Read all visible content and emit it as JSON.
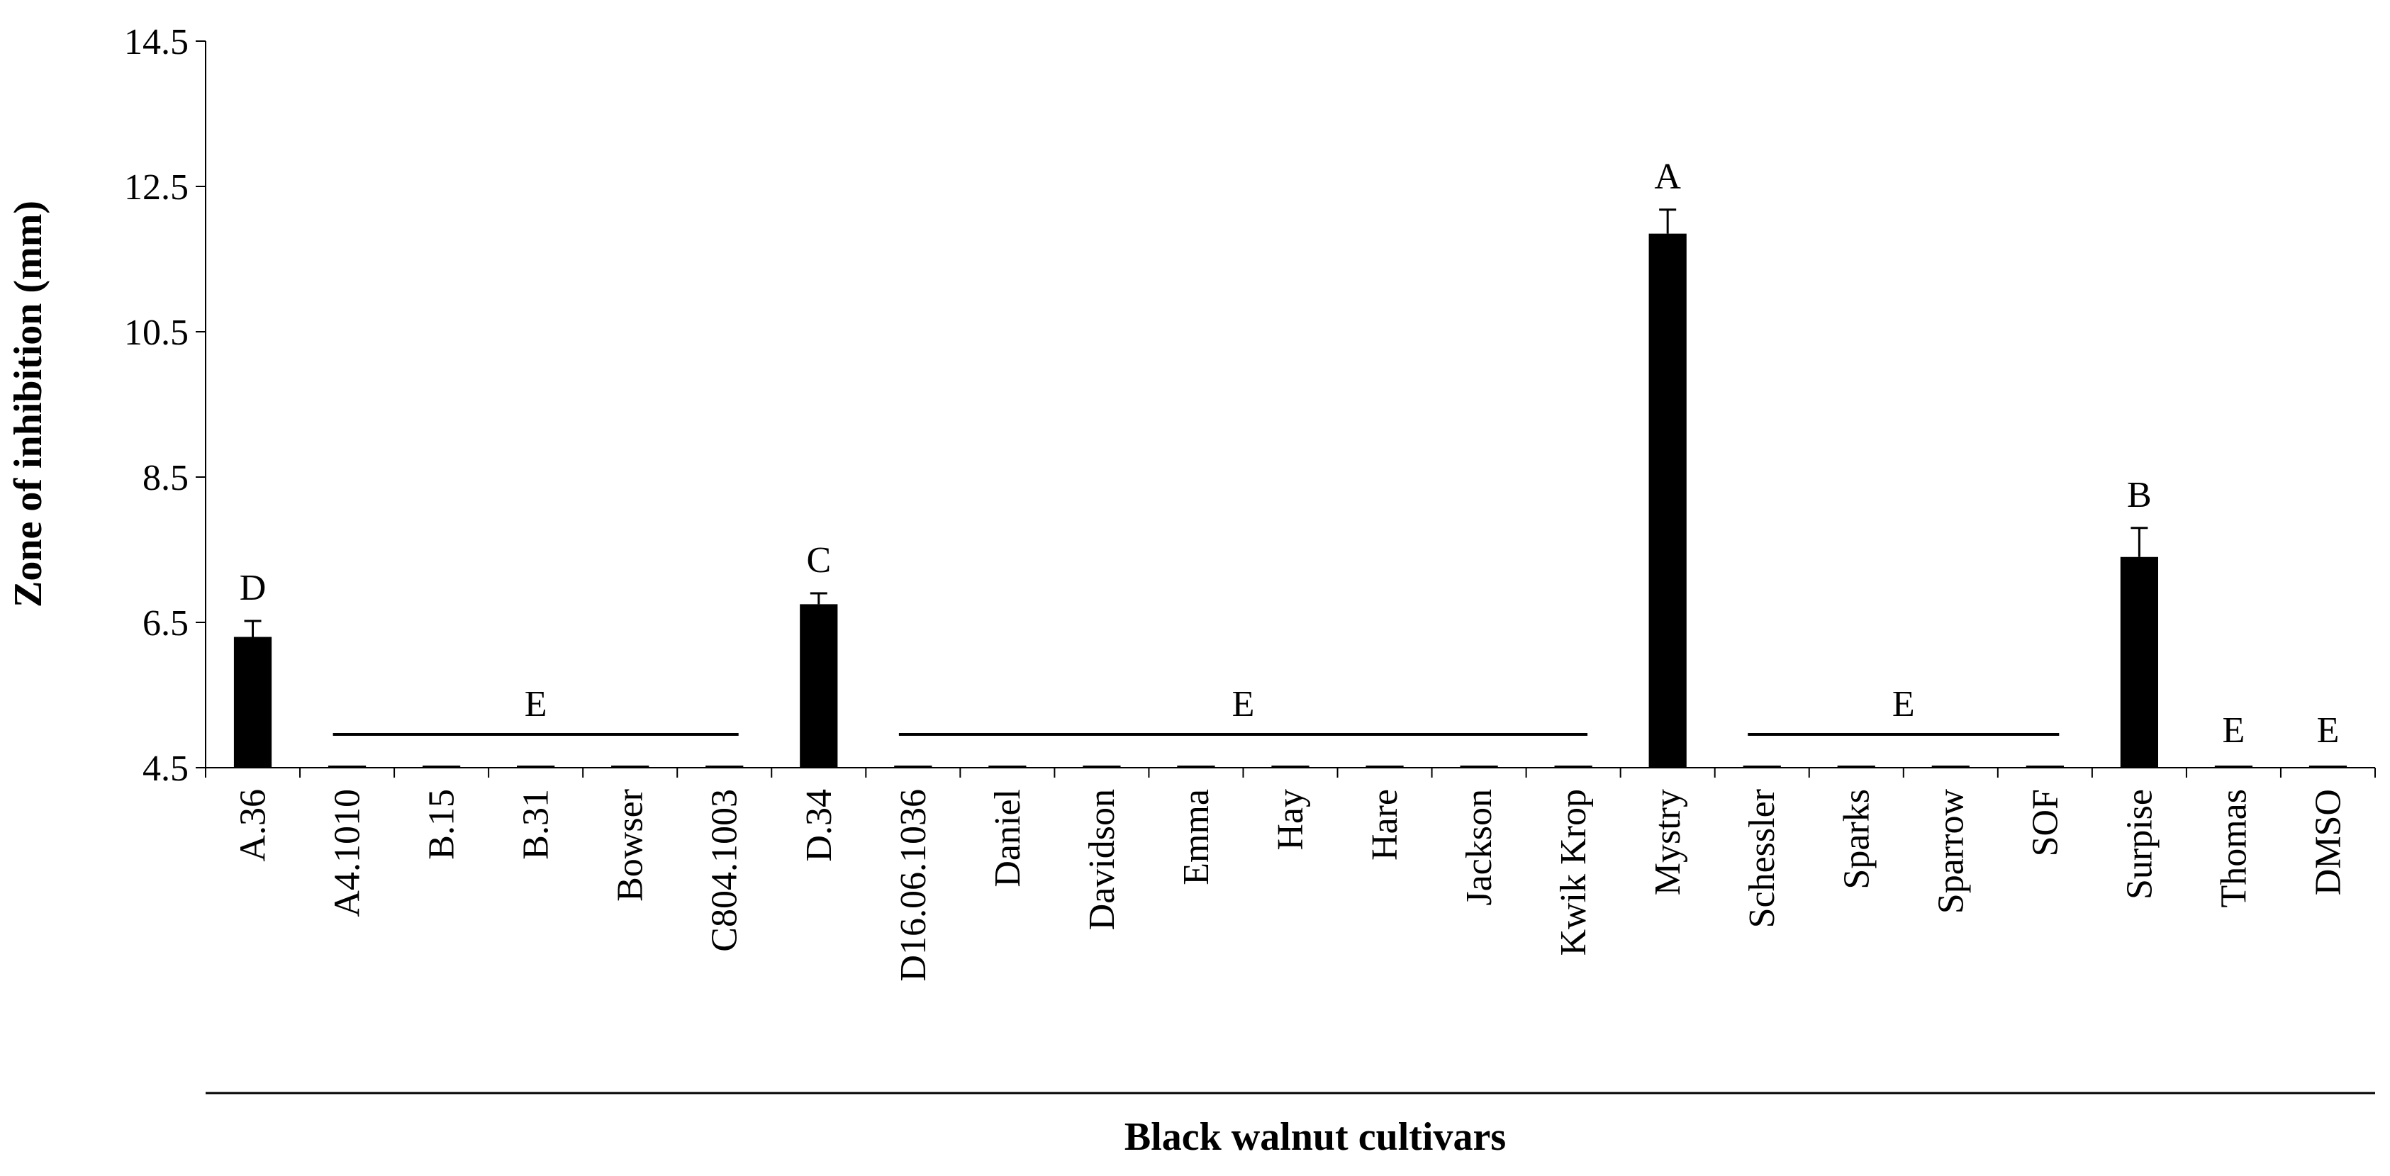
{
  "chart_data": {
    "type": "bar",
    "title": "",
    "xlabel": "Black walnut cultivars",
    "ylabel": "Zone of inhibition  (mm)",
    "ylim": [
      4.5,
      14.5
    ],
    "yticks": [
      "4.5",
      "6.5",
      "8.5",
      "10.5",
      "12.5",
      "14.5"
    ],
    "grid": false,
    "legend": "none",
    "bar_color": "#000000",
    "categories": [
      "A.36",
      "A4.1010",
      "B.15",
      "B.31",
      "Bowser",
      "C804.1003",
      "D.34",
      "D16.06.1036",
      "Daniel",
      "Davidson",
      "Emma",
      "Hay",
      "Hare",
      "Jackson",
      "Kwik Krop",
      "Mystry",
      "Schessler",
      "Sparks",
      "Sparrow",
      "SOF",
      "Surpise",
      "Thomas",
      "DMSO"
    ],
    "values": [
      6.3,
      4.5,
      4.5,
      4.5,
      4.5,
      4.5,
      6.75,
      4.5,
      4.5,
      4.5,
      4.5,
      4.5,
      4.5,
      4.5,
      4.5,
      11.85,
      4.5,
      4.5,
      4.5,
      4.5,
      7.4,
      4.5,
      4.5
    ],
    "error": [
      0.22,
      0,
      0,
      0,
      0,
      0,
      0.15,
      0,
      0,
      0,
      0,
      0,
      0,
      0,
      0,
      0.33,
      0,
      0,
      0,
      0,
      0.4,
      0,
      0
    ],
    "annotations": [
      {
        "text": "D",
        "type": "bar",
        "index": 0
      },
      {
        "text": "E",
        "type": "span",
        "from": 1,
        "to": 5
      },
      {
        "text": "C",
        "type": "bar",
        "index": 6
      },
      {
        "text": "E",
        "type": "span",
        "from": 7,
        "to": 14
      },
      {
        "text": "A",
        "type": "bar",
        "index": 15
      },
      {
        "text": "E",
        "type": "span",
        "from": 16,
        "to": 19
      },
      {
        "text": "B",
        "type": "bar",
        "index": 20
      },
      {
        "text": "E",
        "type": "bar",
        "index": 21
      },
      {
        "text": "E",
        "type": "bar",
        "index": 22
      }
    ]
  }
}
